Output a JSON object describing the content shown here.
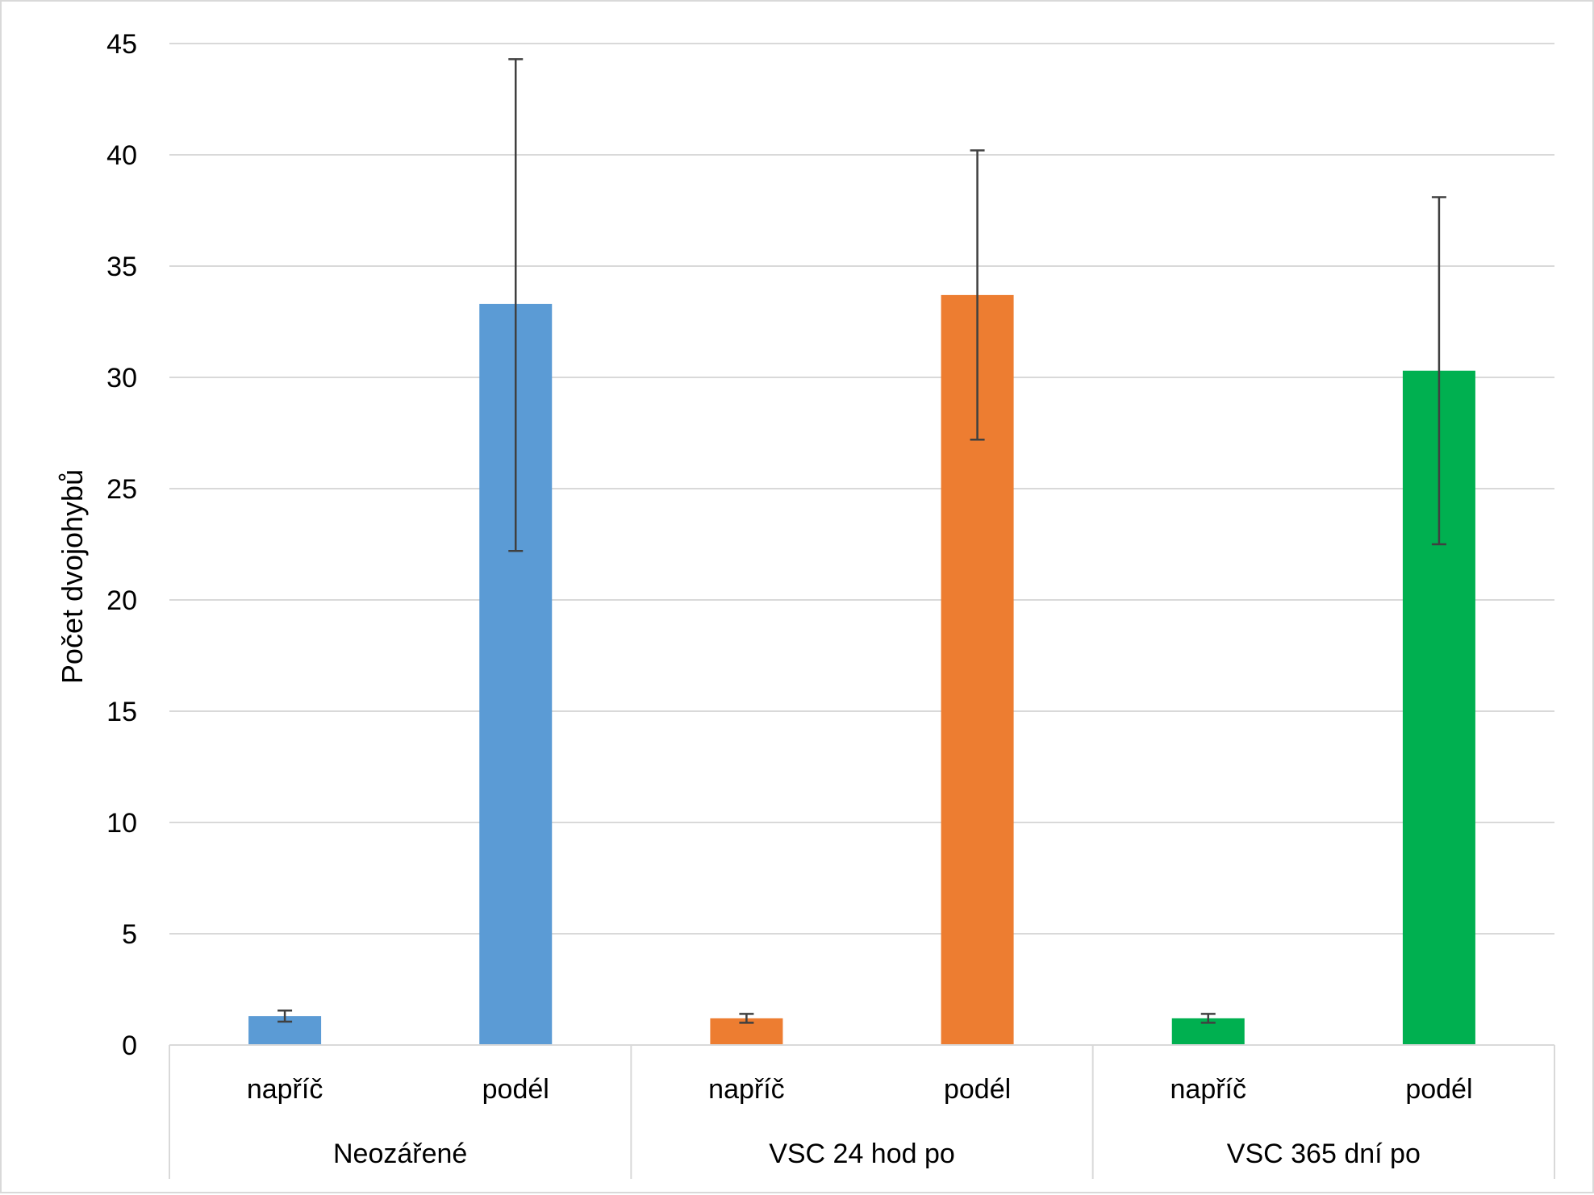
{
  "chart_data": {
    "type": "bar",
    "title": "",
    "ylabel": "Počet dvojohybů",
    "xlabel": "",
    "ylim": [
      0,
      45
    ],
    "yticks": [
      0,
      5,
      10,
      15,
      20,
      25,
      30,
      35,
      40,
      45
    ],
    "grid": true,
    "legend": "none",
    "groups": [
      {
        "label": "Neozářené",
        "color": "#5B9BD5"
      },
      {
        "label": "VSC 24 hod po",
        "color": "#ED7D31"
      },
      {
        "label": "VSC 365 dní po",
        "color": "#00B050"
      }
    ],
    "categories": [
      "napříč",
      "podél",
      "napříč",
      "podél",
      "napříč",
      "podél"
    ],
    "values": [
      1.3,
      33.3,
      1.2,
      33.7,
      1.2,
      30.3
    ],
    "error_low": [
      1.05,
      22.2,
      1.0,
      27.2,
      1.0,
      22.5
    ],
    "error_high": [
      1.55,
      44.3,
      1.4,
      40.2,
      1.4,
      38.1
    ],
    "error_color": "#404040",
    "grid_color": "#d9d9d9"
  }
}
